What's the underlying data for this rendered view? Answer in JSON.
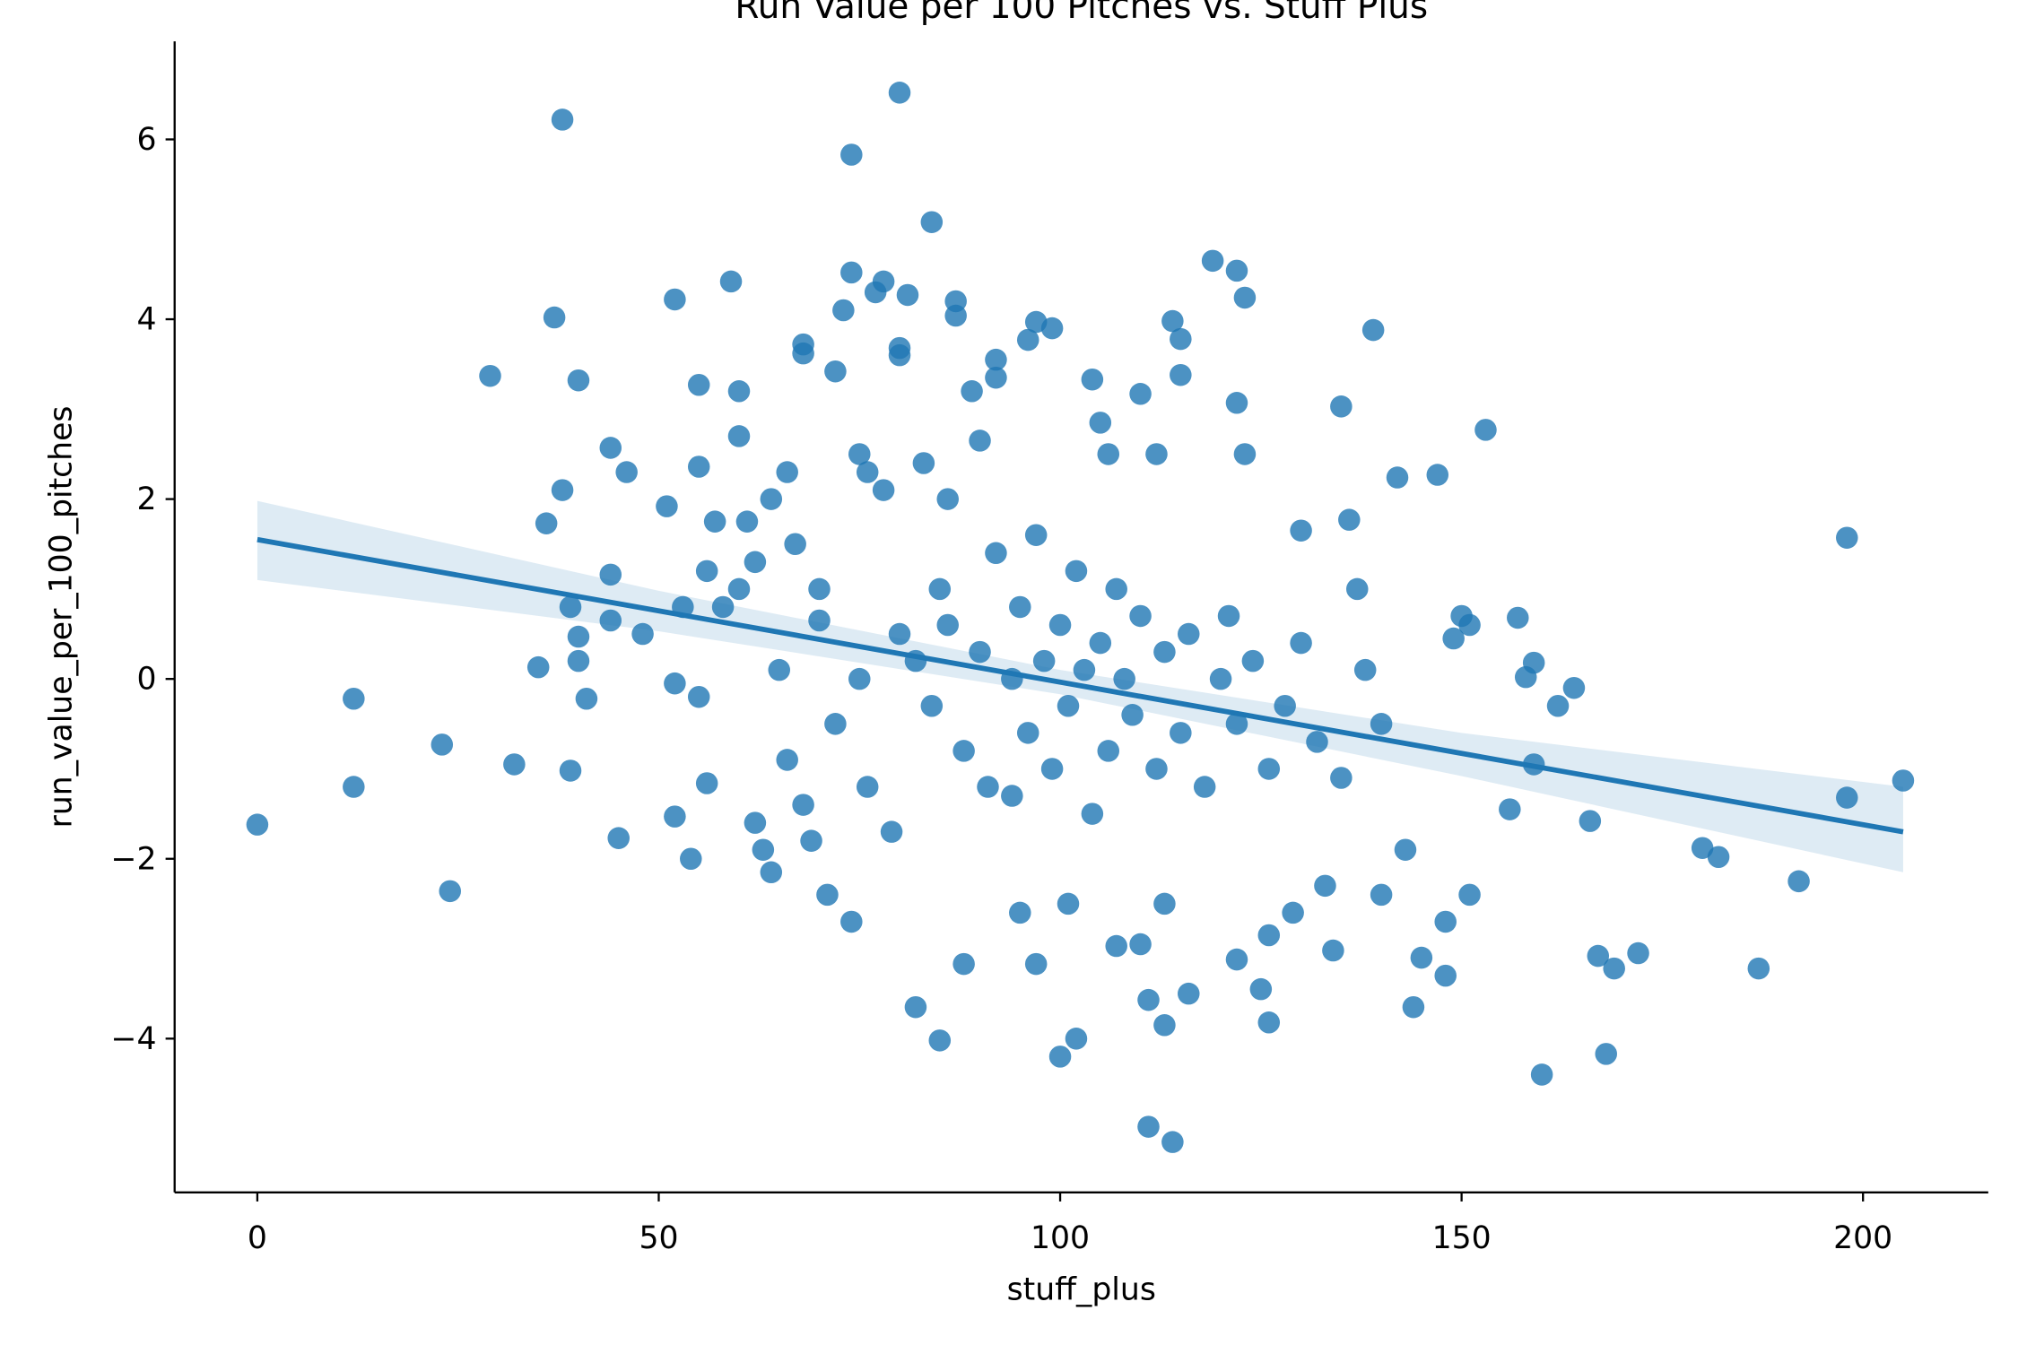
{
  "chart_data": {
    "type": "scatter",
    "title": "Run Value per 100 Pitches vs. Stuff Plus",
    "x_label": "stuff_plus",
    "y_label": "run_value_per_100_pitches",
    "color": "#1f77b4",
    "xlim": [
      -10.3,
      215.6
    ],
    "ylim": [
      -5.71,
      7.09
    ],
    "xticks": [
      0,
      50,
      100,
      150,
      200
    ],
    "yticks": [
      {
        "value": -4,
        "label": "−4"
      },
      {
        "value": -2,
        "label": "−2"
      },
      0,
      2,
      4,
      6
    ],
    "x": [
      0,
      12,
      12,
      23,
      24,
      29,
      32,
      35,
      36,
      37,
      38,
      38,
      39,
      39,
      40,
      40,
      40,
      41,
      44,
      44,
      44,
      45,
      46,
      48,
      51,
      52,
      52,
      52,
      53,
      54,
      55,
      55,
      55,
      56,
      56,
      57,
      58,
      59,
      60,
      60,
      60,
      61,
      62,
      62,
      63,
      64,
      64,
      66,
      67,
      68,
      68,
      69,
      70,
      71,
      72,
      73,
      74,
      74,
      74,
      75,
      76,
      77,
      78,
      78,
      79,
      80,
      80,
      80,
      81,
      82,
      83,
      84,
      85,
      86,
      87,
      87,
      88,
      89,
      90,
      92,
      92,
      94,
      95,
      96,
      97,
      97,
      99,
      100,
      101,
      102,
      104,
      105,
      106,
      107,
      110,
      110,
      111,
      111,
      112,
      113,
      113,
      114,
      114,
      115,
      115,
      116,
      119,
      121,
      122,
      122,
      123,
      123,
      122,
      125,
      126,
      126,
      129,
      130,
      133,
      134,
      135,
      136,
      137,
      139,
      140,
      142,
      143,
      144,
      145,
      147,
      148,
      148,
      149,
      150,
      151,
      151,
      153,
      156,
      157,
      158,
      159,
      159,
      162,
      164,
      166,
      167,
      168,
      169,
      160,
      172,
      180,
      182,
      187,
      192,
      198,
      198,
      205,
      80,
      82,
      84,
      85,
      86,
      88,
      90,
      91,
      92,
      94,
      95,
      96,
      97,
      98,
      99,
      100,
      101,
      102,
      103,
      104,
      105,
      106,
      107,
      108,
      109,
      110,
      112,
      113,
      115,
      116,
      118,
      120,
      122,
      124,
      126,
      128,
      130,
      132,
      135,
      138,
      140,
      70,
      72,
      75,
      76,
      65,
      66,
      68
    ],
    "values": [
      -1.62,
      -0.22,
      -1.2,
      -0.73,
      -2.36,
      3.37,
      -0.95,
      0.13,
      1.73,
      4.02,
      6.22,
      2.1,
      0.8,
      -1.02,
      3.32,
      0.47,
      0.2,
      -0.22,
      2.57,
      1.16,
      0.65,
      -1.77,
      2.3,
      0.5,
      1.92,
      4.22,
      -0.05,
      -1.53,
      0.8,
      -2.0,
      3.27,
      2.36,
      -0.2,
      -1.16,
      1.2,
      1.75,
      0.8,
      4.42,
      3.2,
      2.7,
      1.0,
      1.75,
      1.3,
      -1.6,
      -1.9,
      -2.15,
      2.0,
      2.3,
      1.5,
      3.72,
      3.62,
      -1.8,
      0.65,
      -2.4,
      3.42,
      4.1,
      5.83,
      4.52,
      -2.7,
      2.5,
      2.3,
      4.3,
      4.42,
      2.1,
      -1.7,
      6.52,
      3.68,
      3.6,
      4.27,
      -3.65,
      2.4,
      5.08,
      -4.02,
      2.0,
      4.2,
      4.04,
      -3.17,
      3.2,
      2.65,
      3.55,
      3.35,
      -1.3,
      -2.6,
      3.77,
      3.97,
      -3.17,
      3.9,
      -4.2,
      -2.5,
      -4.0,
      3.33,
      2.85,
      2.5,
      -2.97,
      3.17,
      -2.95,
      -3.57,
      -4.98,
      2.5,
      -2.5,
      -3.85,
      3.98,
      -5.15,
      3.78,
      3.38,
      -3.5,
      4.65,
      0.7,
      4.54,
      3.07,
      4.24,
      2.5,
      -3.12,
      -3.45,
      -3.82,
      -2.85,
      -2.6,
      1.65,
      -2.3,
      -3.02,
      3.03,
      1.77,
      1.0,
      3.88,
      -2.4,
      2.24,
      -1.9,
      -3.65,
      -3.1,
      2.27,
      -2.7,
      -3.3,
      0.45,
      0.7,
      0.6,
      -2.4,
      2.77,
      -1.45,
      0.68,
      0.02,
      0.18,
      -0.95,
      -0.3,
      -0.1,
      -1.58,
      -3.08,
      -4.17,
      -3.22,
      -4.4,
      -3.05,
      -1.88,
      -1.98,
      -3.22,
      -2.25,
      1.57,
      -1.32,
      -1.13,
      0.5,
      0.2,
      -0.3,
      1.0,
      0.6,
      -0.8,
      0.3,
      -1.2,
      1.4,
      0.0,
      0.8,
      -0.6,
      1.6,
      0.2,
      -1.0,
      0.6,
      -0.3,
      1.2,
      0.1,
      -1.5,
      0.4,
      -0.8,
      1.0,
      0.0,
      -0.4,
      0.7,
      -1.0,
      0.3,
      -0.6,
      0.5,
      -1.2,
      0.0,
      -0.5,
      0.2,
      -1.0,
      -0.3,
      0.4,
      -0.7,
      -1.1,
      0.1,
      -0.5,
      1.0,
      -0.5,
      0.0,
      -1.2,
      0.1,
      -0.9,
      -1.4
    ],
    "fit": {
      "x": [
        0,
        205
      ],
      "values": [
        1.55,
        -1.7
      ]
    },
    "band": {
      "x": [
        0,
        50,
        100,
        150,
        205
      ],
      "upper": [
        1.98,
        0.98,
        0.1,
        -0.6,
        -1.2
      ],
      "lower": [
        1.1,
        0.53,
        -0.17,
        -1.08,
        -2.15
      ]
    }
  }
}
